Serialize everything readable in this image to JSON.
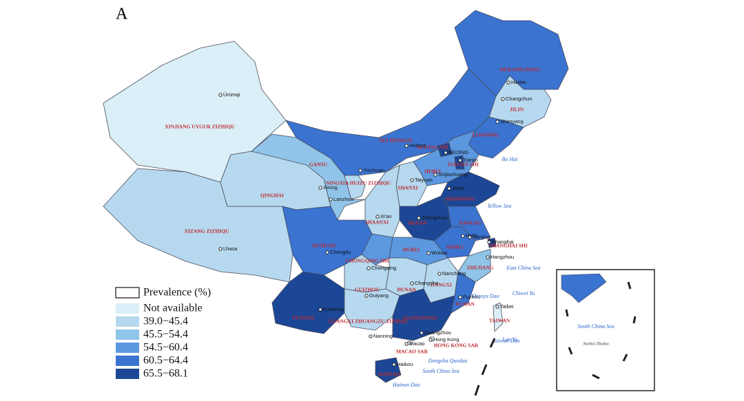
{
  "panel_label": "A",
  "legend": {
    "title": "Prevalence (%)",
    "classes": [
      {
        "label": "Not available",
        "color": "#daeff7"
      },
      {
        "label": "39.0−45.4",
        "color": "#b6d9ef"
      },
      {
        "label": "45.5−54.4",
        "color": "#90c4e8"
      },
      {
        "label": "54.5−60.4",
        "color": "#5b98df"
      },
      {
        "label": "60.5−64.4",
        "color": "#3a73d0"
      },
      {
        "label": "65.5−68.1",
        "color": "#1c4796"
      }
    ]
  },
  "provinces": [
    {
      "name": "XINJIANG UYGUR ZIZHIQU",
      "class": 0
    },
    {
      "name": "XIZANG ZIZHIQU",
      "class": 1
    },
    {
      "name": "QINGHAI",
      "class": 1
    },
    {
      "name": "GANSU",
      "class": 2
    },
    {
      "name": "NEI MONGOL",
      "class": 4
    },
    {
      "name": "HEILONGJIANG",
      "class": 4
    },
    {
      "name": "JILIN",
      "class": 1
    },
    {
      "name": "LIAONING",
      "class": 4
    },
    {
      "name": "HEBEI",
      "class": 3
    },
    {
      "name": "BEIJING SHI",
      "class": 5
    },
    {
      "name": "TIANJIN SHI",
      "class": 5
    },
    {
      "name": "SHANXI",
      "class": 1
    },
    {
      "name": "SHANDONG",
      "class": 5
    },
    {
      "name": "NINGXIA HUIZU ZIZHIQU",
      "class": 1
    },
    {
      "name": "SHAANXI",
      "class": 1
    },
    {
      "name": "HENAN",
      "class": 5
    },
    {
      "name": "JIANGSU",
      "class": 4
    },
    {
      "name": "ANHUI",
      "class": 4
    },
    {
      "name": "SHANGHAI SHI",
      "class": 5
    },
    {
      "name": "SICHUAN",
      "class": 4
    },
    {
      "name": "CHONGQING SHI",
      "class": 3
    },
    {
      "name": "HUBEI",
      "class": 3
    },
    {
      "name": "ZHEJIANG",
      "class": 2
    },
    {
      "name": "GUIZHOU",
      "class": 1
    },
    {
      "name": "HUNAN",
      "class": 1
    },
    {
      "name": "JIANGXI",
      "class": 1
    },
    {
      "name": "FUJIAN",
      "class": 4
    },
    {
      "name": "YUNNAN",
      "class": 5
    },
    {
      "name": "GUANGXI ZHUANGZU ZIZHIQU",
      "class": 1
    },
    {
      "name": "GUANGDONG",
      "class": 5
    },
    {
      "name": "TAIWAN",
      "class": 0
    },
    {
      "name": "HONG KONG SAR",
      "class": 0
    },
    {
      "name": "MACAO SAR",
      "class": 0
    },
    {
      "name": "HAINAN",
      "class": 5
    }
  ],
  "cities": [
    "Ürümqi",
    "Harbin",
    "Changchun",
    "Shenyang",
    "Hohhot",
    "BEIJING",
    "Tianjin",
    "Shijiazhuang",
    "Taiyuan",
    "Yinchuan",
    "Xining",
    "Lanzhou",
    "Jinan",
    "Zhengzhou",
    "Xi'an",
    "Hefei",
    "Nanjing",
    "Shanghai",
    "Chengdu",
    "Wuhan",
    "Hangzhou",
    "Chongqing",
    "Nanchang",
    "Changsha",
    "Guiyang",
    "Fuzhou",
    "Taibei",
    "Kunming",
    "Nanning",
    "Guangzhou",
    "Hong Kong",
    "Macao",
    "Haikou",
    "Lhasa"
  ],
  "seas": [
    "Bo Hai",
    "Yellow Sea",
    "East China Sea",
    "South China Sea",
    "Taiwan Dao",
    "Hainan Dao",
    "Dongsha Qundao",
    "Chiwei Yu",
    "Diaoyu Dao",
    "Lan Yu"
  ],
  "inset": {
    "labels": [
      "South China Sea",
      "Nanhai Zhudao"
    ]
  }
}
